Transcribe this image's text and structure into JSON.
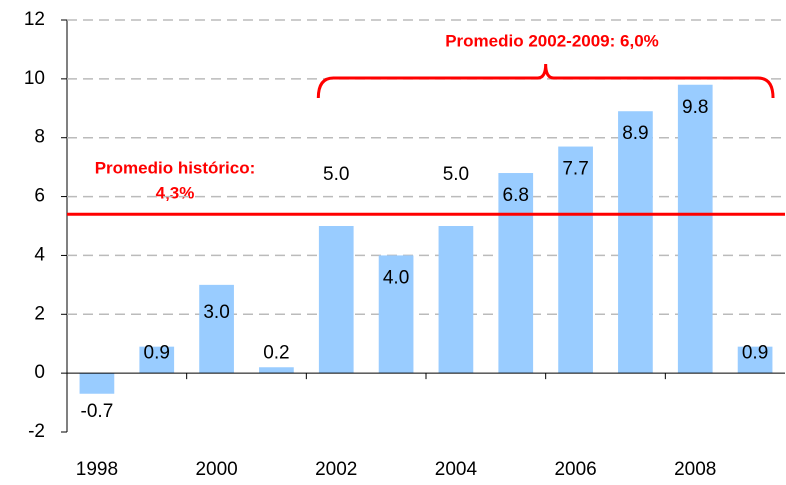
{
  "chart_data": {
    "type": "bar",
    "categories": [
      "1998",
      null,
      "2000",
      null,
      "2002",
      null,
      "2004",
      null,
      "2006",
      null,
      "2008",
      null
    ],
    "values": [
      -0.7,
      0.9,
      3.0,
      0.2,
      5.0,
      4.0,
      5.0,
      6.8,
      7.7,
      8.9,
      9.8,
      0.9
    ],
    "value_labels": [
      "-0.7",
      "0.9",
      "3.0",
      "0.2",
      "5.0",
      "4.0",
      "5.0",
      "6.8",
      "7.7",
      "8.9",
      "9.8",
      "0.9"
    ],
    "color": "#99ccff",
    "ylim": [
      -2,
      12
    ],
    "yticks": [
      -2,
      0,
      2,
      4,
      6,
      8,
      10,
      12
    ],
    "grid": true,
    "reference_line": {
      "value": 5.4,
      "color": "#ff0000"
    },
    "annotations": [
      "Promedio histórico:",
      "4,3%",
      "Promedio 2002-2009:  6,0%"
    ]
  }
}
